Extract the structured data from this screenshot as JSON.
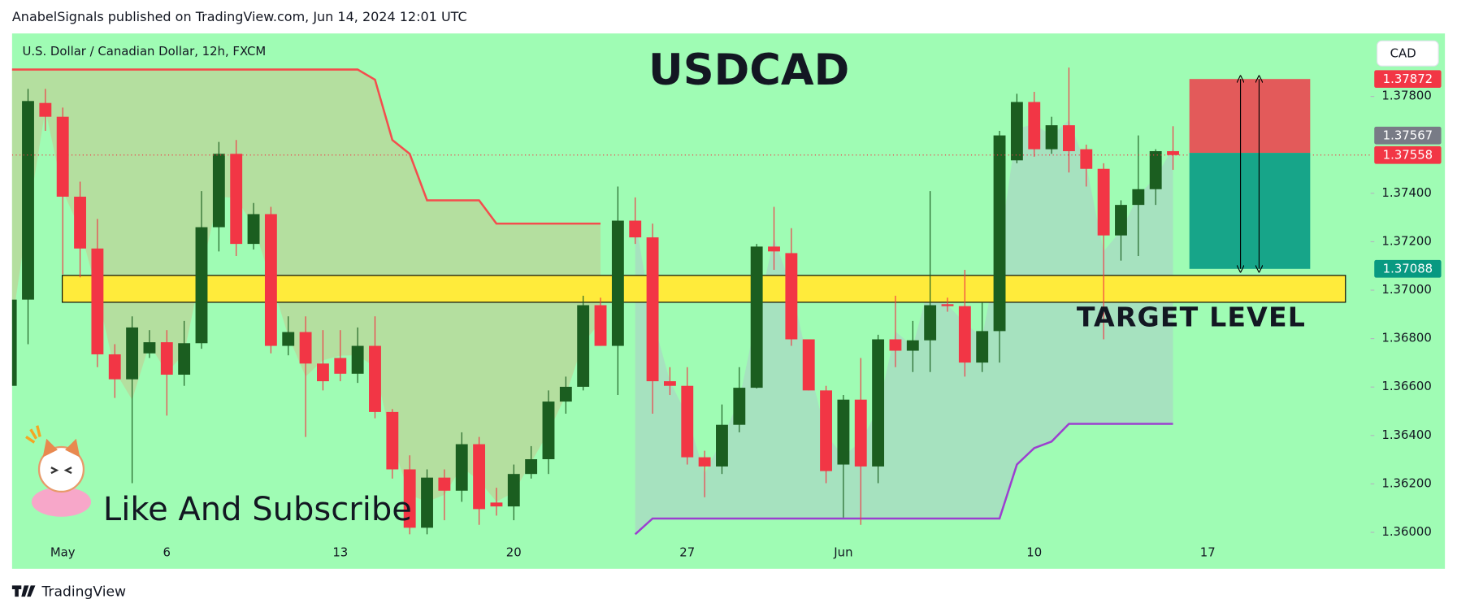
{
  "header": "AnabelSignals published on TradingView.com, Jun 14, 2024 12:01 UTC",
  "footer": "TradingView",
  "chart_data": {
    "type": "candlestick",
    "title": "USDCAD",
    "subtitle": "U.S. Dollar / Canadian Dollar, 12h, FXCM",
    "currency": "CAD",
    "annotation": "Like And Subscribe",
    "categories": [
      null,
      null,
      null,
      "May",
      null,
      null,
      null,
      null,
      null,
      "6",
      null,
      null,
      null,
      null,
      null,
      null,
      null,
      null,
      null,
      "13",
      null,
      null,
      null,
      null,
      null,
      null,
      null,
      null,
      null,
      "20",
      null,
      null,
      null,
      null,
      null,
      null,
      null,
      null,
      null,
      "27",
      null,
      null,
      null,
      null,
      null,
      null,
      null,
      null,
      "Jun",
      null,
      null,
      null,
      null,
      null,
      null,
      null,
      null,
      null,
      null,
      "10",
      null,
      null,
      null,
      null,
      null,
      null,
      null,
      null,
      null,
      "17"
    ],
    "open": [
      1.36605,
      1.36961,
      1.37773,
      1.37716,
      1.37386,
      1.37172,
      1.36735,
      1.36632,
      1.36739,
      1.36785,
      1.36651,
      1.36781,
      1.3726,
      1.37563,
      1.37191,
      1.37314,
      1.3677,
      1.36827,
      1.36697,
      1.3672,
      1.36655,
      1.3677,
      1.36497,
      1.3626,
      1.36019,
      1.36226,
      1.36172,
      1.36364,
      1.36123,
      1.36107,
      1.36241,
      1.36302,
      1.3654,
      1.36601,
      1.36938,
      1.3677,
      1.37287,
      1.37218,
      1.36624,
      1.36605,
      1.3631,
      1.36272,
      1.36444,
      1.36597,
      1.3718,
      1.37153,
      1.36797,
      1.36586,
      1.3628,
      1.36548,
      1.36272,
      1.36797,
      1.3675,
      1.36793,
      1.36942,
      1.36934,
      1.36701,
      1.36831,
      1.37536,
      1.37777,
      1.37582,
      1.37681,
      1.37582,
      1.37501,
      1.37226,
      1.37352,
      1.37417,
      1.37574,
      null,
      null
    ],
    "high": [
      1.37045,
      1.37831,
      1.37831,
      1.37754,
      1.37448,
      1.37294,
      1.36777,
      1.36892,
      1.36835,
      1.36835,
      1.36873,
      1.37409,
      1.37612,
      1.3762,
      1.3736,
      1.37344,
      1.36892,
      1.36892,
      1.36835,
      1.36835,
      1.36846,
      1.36892,
      1.36509,
      1.36318,
      1.3626,
      1.3626,
      1.36413,
      1.36394,
      1.36184,
      1.3628,
      1.36356,
      1.36586,
      1.36643,
      1.36977,
      1.36969,
      1.37428,
      1.37383,
      1.37275,
      1.36682,
      1.36682,
      1.36337,
      1.36528,
      1.36682,
      1.37191,
      1.37344,
      1.37256,
      1.36797,
      1.36605,
      1.36567,
      1.3672,
      1.36816,
      1.36977,
      1.36873,
      1.37409,
      1.36969,
      1.37084,
      1.3695,
      1.37658,
      1.37811,
      1.37819,
      1.37716,
      1.37919,
      1.37601,
      1.37524,
      1.37371,
      1.37639,
      1.37582,
      1.37677,
      null,
      null
    ],
    "low": [
      1.36605,
      1.36777,
      1.37658,
      1.37065,
      1.37053,
      1.36682,
      1.36555,
      1.36203,
      1.3672,
      1.36482,
      1.36605,
      1.36758,
      1.3716,
      1.37141,
      1.37168,
      1.36739,
      1.36731,
      1.36394,
      1.36586,
      1.36624,
      1.36617,
      1.36471,
      1.36222,
      1.35992,
      1.35992,
      1.3605,
      1.36126,
      1.36031,
      1.36069,
      1.3605,
      1.36222,
      1.36241,
      1.3649,
      1.36586,
      1.3677,
      1.36567,
      1.37191,
      1.3649,
      1.36567,
      1.3628,
      1.36145,
      1.36241,
      1.36413,
      1.36594,
      1.37084,
      1.3677,
      1.36586,
      1.36203,
      1.36061,
      1.36031,
      1.36203,
      1.36682,
      1.36662,
      1.36662,
      1.36911,
      1.36643,
      1.36662,
      1.36701,
      1.37524,
      1.37551,
      1.37563,
      1.37486,
      1.37428,
      1.36797,
      1.37122,
      1.37141,
      1.37352,
      1.37497,
      null,
      null
    ],
    "close": [
      1.36961,
      1.37781,
      1.37716,
      1.37386,
      1.37172,
      1.36735,
      1.36632,
      1.36846,
      1.36785,
      1.36651,
      1.36781,
      1.3726,
      1.37563,
      1.37191,
      1.37314,
      1.3677,
      1.36827,
      1.36697,
      1.36624,
      1.36655,
      1.3677,
      1.36497,
      1.3626,
      1.36019,
      1.36226,
      1.36172,
      1.36364,
      1.36096,
      1.36107,
      1.36241,
      1.36302,
      1.3654,
      1.36601,
      1.36938,
      1.3677,
      1.37287,
      1.37218,
      1.36624,
      1.36605,
      1.3631,
      1.36272,
      1.36444,
      1.36597,
      1.3718,
      1.3716,
      1.36797,
      1.36586,
      1.36253,
      1.36548,
      1.36272,
      1.36797,
      1.3675,
      1.36793,
      1.36938,
      1.36934,
      1.36701,
      1.36831,
      1.37639,
      1.37777,
      1.37582,
      1.37681,
      1.37574,
      1.37501,
      1.37226,
      1.37352,
      1.37417,
      1.37574,
      1.37558,
      null,
      null
    ],
    "up_color": "#1b5e20",
    "down_color": "#f23645",
    "ylim": [
      1.3598,
      1.3806
    ],
    "yticks": [
      {
        "value": 1.36,
        "label": "1.36000"
      },
      {
        "value": 1.362,
        "label": "1.36200"
      },
      {
        "value": 1.364,
        "label": "1.36400"
      },
      {
        "value": 1.366,
        "label": "1.36600"
      },
      {
        "value": 1.368,
        "label": "1.36800"
      },
      {
        "value": 1.37,
        "label": "1.37000"
      },
      {
        "value": 1.372,
        "label": "1.37200"
      },
      {
        "value": 1.374,
        "label": "1.37400"
      },
      {
        "value": 1.378,
        "label": "1.37800"
      }
    ],
    "grid": false,
    "overlays": [
      {
        "color": "#f44d4d",
        "fill": "#b6dc9c",
        "values": [
          1.37911,
          1.37911,
          1.37911,
          1.37911,
          1.37911,
          1.37911,
          1.37911,
          1.37911,
          1.37911,
          1.37911,
          1.37911,
          1.37911,
          1.37911,
          1.37911,
          1.37911,
          1.37911,
          1.37911,
          1.37911,
          1.37911,
          1.37911,
          1.37911,
          1.37869,
          1.3762,
          1.37563,
          1.37371,
          1.37371,
          1.37371,
          1.37371,
          1.37275,
          1.37275,
          1.37275,
          1.37275,
          1.37275,
          1.37275,
          1.37275,
          null,
          null,
          null,
          null,
          null,
          null,
          null,
          null,
          null,
          null,
          null,
          null,
          null,
          null,
          null,
          null,
          null,
          null,
          null,
          null,
          null,
          null,
          null,
          null,
          null,
          null,
          null,
          null,
          null,
          null,
          null,
          null,
          null,
          null,
          null
        ]
      },
      {
        "color": "#9c3fd0",
        "fill": "#a6dfc0",
        "values": [
          null,
          null,
          null,
          null,
          null,
          null,
          null,
          null,
          null,
          null,
          null,
          null,
          null,
          null,
          null,
          null,
          null,
          null,
          null,
          null,
          null,
          null,
          null,
          null,
          null,
          null,
          null,
          null,
          null,
          null,
          null,
          null,
          null,
          null,
          null,
          null,
          1.35992,
          1.36057,
          1.36057,
          1.36057,
          1.36057,
          1.36057,
          1.36057,
          1.36057,
          1.36057,
          1.36057,
          1.36057,
          1.36057,
          1.36057,
          1.36057,
          1.36057,
          1.36057,
          1.36057,
          1.36057,
          1.36057,
          1.36057,
          1.36057,
          1.36057,
          1.3628,
          1.36348,
          1.36375,
          1.36448,
          1.36448,
          1.36448,
          1.36448,
          1.36448,
          1.36448,
          1.36448,
          null,
          null
        ]
      }
    ],
    "zone": {
      "from": 1.3695,
      "to": 1.37061,
      "color": "#ffeb3b",
      "label": "TARGET LEVEL"
    },
    "price_labels": [
      {
        "value": 1.37872,
        "color": "#f23645"
      },
      {
        "value": 1.37567,
        "color": "#787b86"
      },
      {
        "value": 1.37558,
        "color": "#f23645"
      },
      {
        "value": 1.37088,
        "color": "#089981"
      }
    ],
    "position": {
      "stop_color": "#e35a5a",
      "target_color": "#17a589"
    }
  }
}
